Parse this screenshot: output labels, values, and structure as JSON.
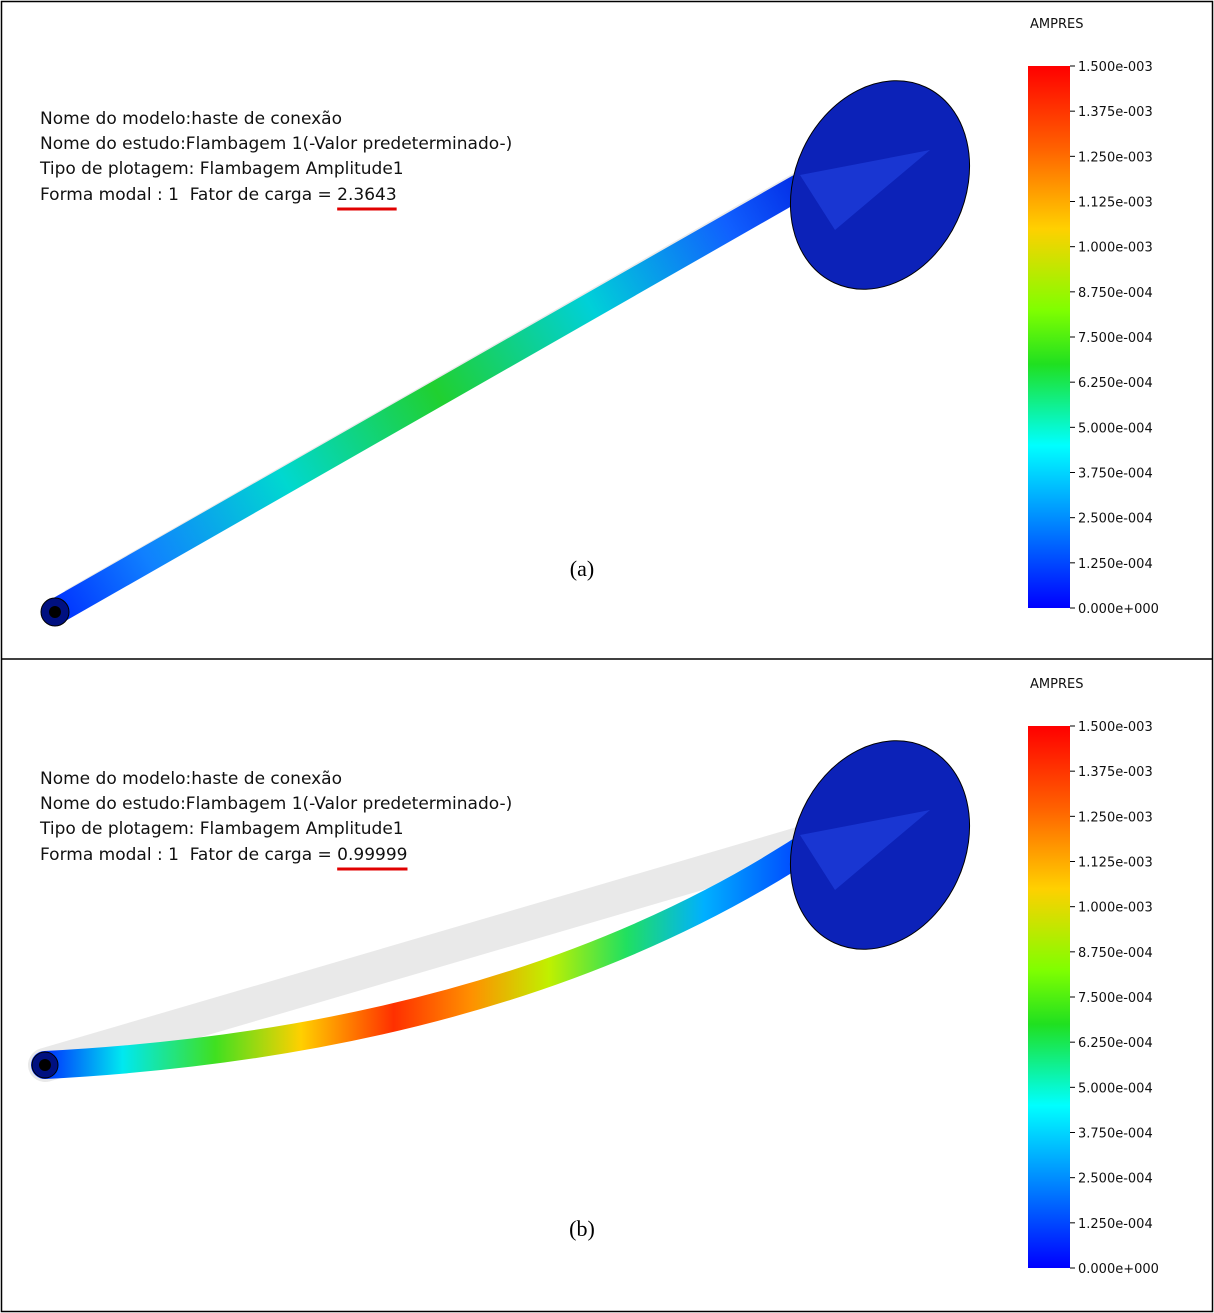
{
  "panels": [
    {
      "info": {
        "model": "Nome do modelo:haste de conexão",
        "study": "Nome do estudo:Flambagem 1(-Valor predeterminado-)",
        "plot": "Tipo de plotagem: Flambagem Amplitude1",
        "mode": "Forma modal : 1  Fator de carga = ",
        "load_factor": "2.3643"
      },
      "legend": {
        "title": "AMPRES",
        "labels": [
          "1.500e-003",
          "1.375e-003",
          "1.250e-003",
          "1.125e-003",
          "1.000e-003",
          "8.750e-004",
          "7.500e-004",
          "6.250e-004",
          "5.000e-004",
          "3.750e-004",
          "2.500e-004",
          "1.250e-004",
          "0.000e+000"
        ]
      },
      "caption": "(a)"
    },
    {
      "info": {
        "model": "Nome do modelo:haste de conexão",
        "study": "Nome do estudo:Flambagem 1(-Valor predeterminado-)",
        "plot": "Tipo de plotagem: Flambagem Amplitude1",
        "mode": "Forma modal : 1  Fator de carga = ",
        "load_factor": "0.99999"
      },
      "legend": {
        "title": "AMPRES",
        "labels": [
          "1.500e-003",
          "1.375e-003",
          "1.250e-003",
          "1.125e-003",
          "1.000e-003",
          "8.750e-004",
          "7.500e-004",
          "6.250e-004",
          "5.000e-004",
          "3.750e-004",
          "2.500e-004",
          "1.250e-004",
          "0.000e+000"
        ]
      },
      "caption": "(b)"
    }
  ]
}
